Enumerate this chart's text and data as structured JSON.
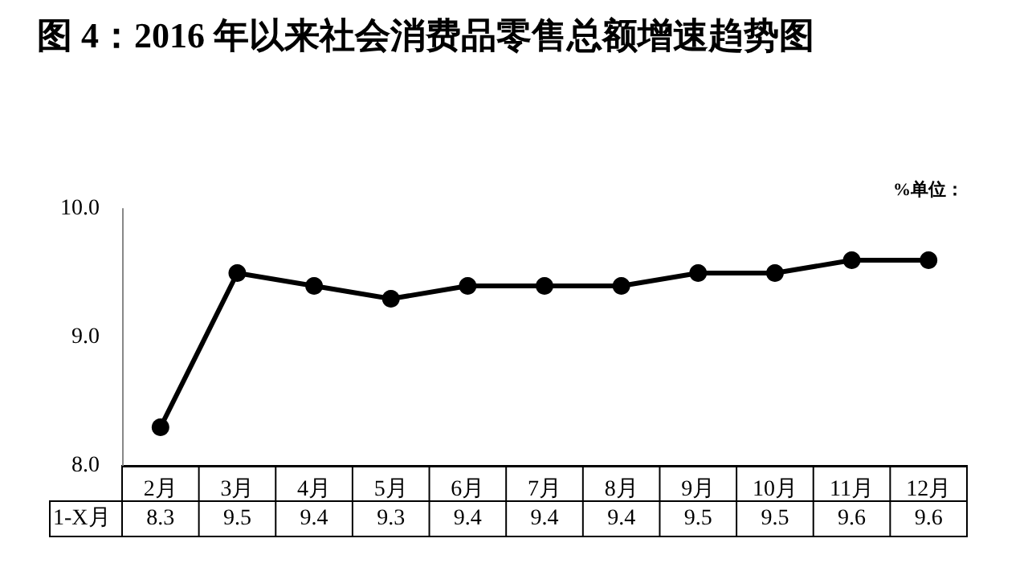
{
  "chart_data": {
    "type": "line",
    "title": "图 4：2016 年以来社会消费品零售总额增速趋势图",
    "annotations": [
      "%单位："
    ],
    "categories": [
      "2月",
      "3月",
      "4月",
      "5月",
      "6月",
      "7月",
      "8月",
      "9月",
      "10月",
      "11月",
      "12月"
    ],
    "series": [
      {
        "name": "1-X月",
        "color": "#000000",
        "values": [
          8.3,
          9.5,
          9.4,
          9.3,
          9.4,
          9.4,
          9.4,
          9.5,
          9.5,
          9.6,
          9.6
        ]
      }
    ],
    "ylim": [
      8,
      10
    ],
    "yticks": [
      {
        "value": 8,
        "label": "8.0"
      },
      {
        "value": 9,
        "label": "9.0"
      },
      {
        "value": 10,
        "label": "10.0"
      }
    ],
    "grid": false,
    "legend": false,
    "marker": "circle",
    "line_style": "solid",
    "data_labels": true
  }
}
